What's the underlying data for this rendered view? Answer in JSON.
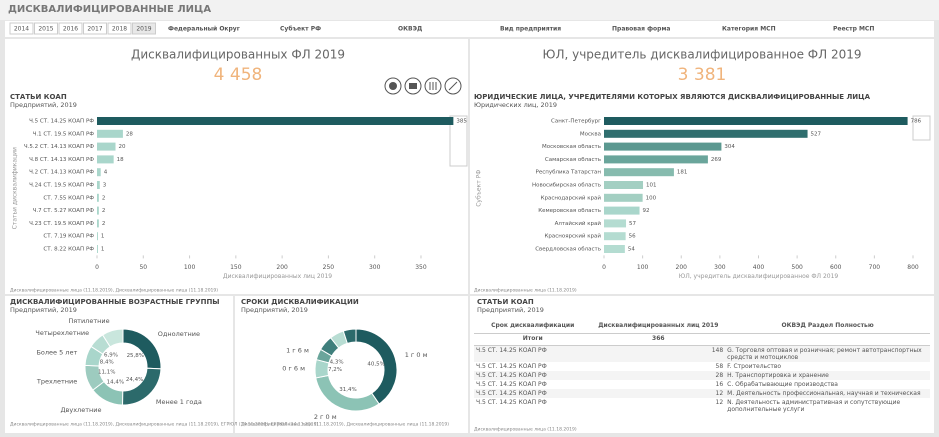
{
  "header": {
    "title": "ДИСКВАЛИФИЦИРОВАННЫЕ ЛИЦА",
    "years": [
      "2014",
      "2015",
      "2016",
      "2017",
      "2018",
      "2019"
    ],
    "filters": [
      "Федеральный Округ",
      "Субъект РФ",
      "ОКВЭД",
      "Вид предприятия",
      "Правовая форма",
      "Категория МСП",
      "Реестр МСП"
    ]
  },
  "kpis": [
    {
      "label": "Дисквалифицированных ФЛ 2019",
      "value": "4 458"
    },
    {
      "label": "ЮЛ, учредитель дисквалифицированное ФЛ 2019",
      "value": "3 381"
    }
  ],
  "chart_data": [
    {
      "type": "hbar",
      "title": "СТАТЬИ КОАП",
      "subtitle": "Предприятий, 2019",
      "ylabel": "Статьи дисквалификации",
      "xlabel": "Дисквалифицированных лиц 2019",
      "categories": [
        "Ч.5 СТ. 14.25 КОАП РФ",
        "Ч.1 СТ. 19.5 КОАП РФ",
        "Ч.5.2 СТ. 14.13 КОАП РФ",
        "Ч.8 СТ. 14.13 КОАП РФ",
        "Ч.2 СТ. 14.13 КОАП РФ",
        "Ч.24 СТ. 19.5 КОАП РФ",
        "СТ. 7.55 КОАП РФ",
        "Ч.7 СТ. 5.27 КОАП РФ",
        "Ч.23 СТ. 19.5 КОАП РФ",
        "СТ. 7.19 КОАП РФ",
        "СТ. 8.22 КОАП РФ"
      ],
      "values": [
        385,
        28,
        20,
        18,
        4,
        3,
        2,
        2,
        2,
        1,
        1
      ],
      "colors": [
        "#1e5b5f",
        "#a9d6cb",
        "#a9d6cb",
        "#a9d6cb",
        "#a9d6cb",
        "#a9d6cb",
        "#a9d6cb",
        "#a9d6cb",
        "#a9d6cb",
        "#a9d6cb",
        "#a9d6cb"
      ],
      "xlim": [
        0,
        390
      ],
      "xticks": [
        0,
        50,
        100,
        150,
        200,
        250,
        300,
        350
      ],
      "footnote": "Дисквалифицированные лица (11.18.2019), Дисквалифицированные лица (11.18.2019)"
    },
    {
      "type": "hbar",
      "title": "ЮРИДИЧЕСКИЕ ЛИЦА, УЧРЕДИТЕЛЯМИ КОТОРЫХ ЯВЛЯЮТСЯ ДИСКВАЛИФИЦИРОВАННЫЕ ЛИЦА",
      "subtitle": "Юридических лиц, 2019",
      "ylabel": "Субъект РФ",
      "xlabel": "ЮЛ, учредитель дисквалифицированное ФЛ 2019",
      "categories": [
        "Санкт-Петербург",
        "Москва",
        "Московская область",
        "Самарская область",
        "Республика Татарстан",
        "Новосибирская область",
        "Краснодарский край",
        "Кемеровская область",
        "Алтайский край",
        "Красноярский край",
        "Свердловская область"
      ],
      "values": [
        786,
        527,
        304,
        269,
        181,
        101,
        100,
        92,
        57,
        56,
        54
      ],
      "colors": [
        "#1e5b5f",
        "#2f6e6e",
        "#5b9890",
        "#6aa59b",
        "#86bbae",
        "#a3cfc2",
        "#a3cfc2",
        "#a9d6cb",
        "#b4dcd1",
        "#b4dcd1",
        "#b4dcd1"
      ],
      "xlim": [
        0,
        800
      ],
      "xticks": [
        0,
        100,
        200,
        300,
        400,
        500,
        600,
        700,
        800
      ],
      "footnote": "Дисквалифицированные лица (11.18.2019)"
    },
    {
      "type": "donut",
      "title": "ДИСКВАЛИФИЦИРОВАННЫЕ ВОЗРАСТНЫЕ ГРУППЫ",
      "subtitle": "Предприятий, 2019",
      "categories": [
        "Однолетние",
        "Менее 1 года",
        "Двухлетние",
        "Трехлетние",
        "Более 5 лет",
        "Четырехлетние",
        "Пятилетние"
      ],
      "values": [
        25.8,
        24.4,
        14.4,
        11.1,
        8.4,
        6.9,
        9.0
      ],
      "value_labels": [
        "25,8%",
        "24,4%",
        "14,4%",
        "11,1%",
        "8,4%",
        "6,9%",
        null
      ],
      "colors": [
        "#1e5b5f",
        "#2c6a6b",
        "#8cc3b5",
        "#9dcbbf",
        "#a9d6cb",
        "#b8ddd3",
        "#c9e6dd"
      ],
      "footnote": "Дисквалифицированные лица (11.18.2019), Дисквалифицированные лица (11.18.2019), ЕГРЮЛ (14.11.2019), ЕГРЮЛ (14.11.2019)"
    },
    {
      "type": "donut",
      "title": "СРОКИ ДИСКВАЛИФИКАЦИИ",
      "subtitle": "Предприятий, 2019",
      "categories": [
        "1 г 0 м",
        "2 г 0 м",
        "0 г 6 м",
        "1 г 6 м",
        null,
        null,
        null
      ],
      "values": [
        40.5,
        31.4,
        7.2,
        4.3,
        6.0,
        5.6,
        5.0
      ],
      "value_labels": [
        "40,5%",
        "31,4%",
        "7,2%",
        "4,3%",
        null,
        null,
        null
      ],
      "colors": [
        "#1e5b5f",
        "#8cc3b5",
        "#a9d6cb",
        "#6aa59b",
        "#3f7f7c",
        "#b8ddd3",
        "#2c6a6b"
      ],
      "footnote": "Дисквалифицированные лица (11.18.2019), Дисквалифицированные лица (11.18.2019)"
    }
  ],
  "table": {
    "title": "СТАТЬИ КОАП",
    "subtitle": "Предприятий, 2019",
    "columns": [
      "Срок дисквалификации",
      "Дисквалифицированных лиц 2019",
      "ОКВЭД Раздел Полностью"
    ],
    "total": [
      "Итоги",
      "366"
    ],
    "rows": [
      [
        "Ч.5 СТ. 14.25 КОАП РФ",
        "148",
        "G. Торговля оптовая и розничная; ремонт автотранспортных средств и мотоциклов"
      ],
      [
        "Ч.5 СТ. 14.25 КОАП РФ",
        "58",
        "F. Строительство"
      ],
      [
        "Ч.5 СТ. 14.25 КОАП РФ",
        "28",
        "H. Транспортировка и хранение"
      ],
      [
        "Ч.5 СТ. 14.25 КОАП РФ",
        "16",
        "C. Обрабатывающие производства"
      ],
      [
        "Ч.5 СТ. 14.25 КОАП РФ",
        "12",
        "M. Деятельность профессиональная, научная и техническая"
      ],
      [
        "Ч.5 СТ. 14.25 КОАП РФ",
        "12",
        "N. Деятельность административная и сопутствующие дополнительные услуги"
      ]
    ],
    "footnote": "Дисквалифицированные лица (11.18.2019)"
  }
}
